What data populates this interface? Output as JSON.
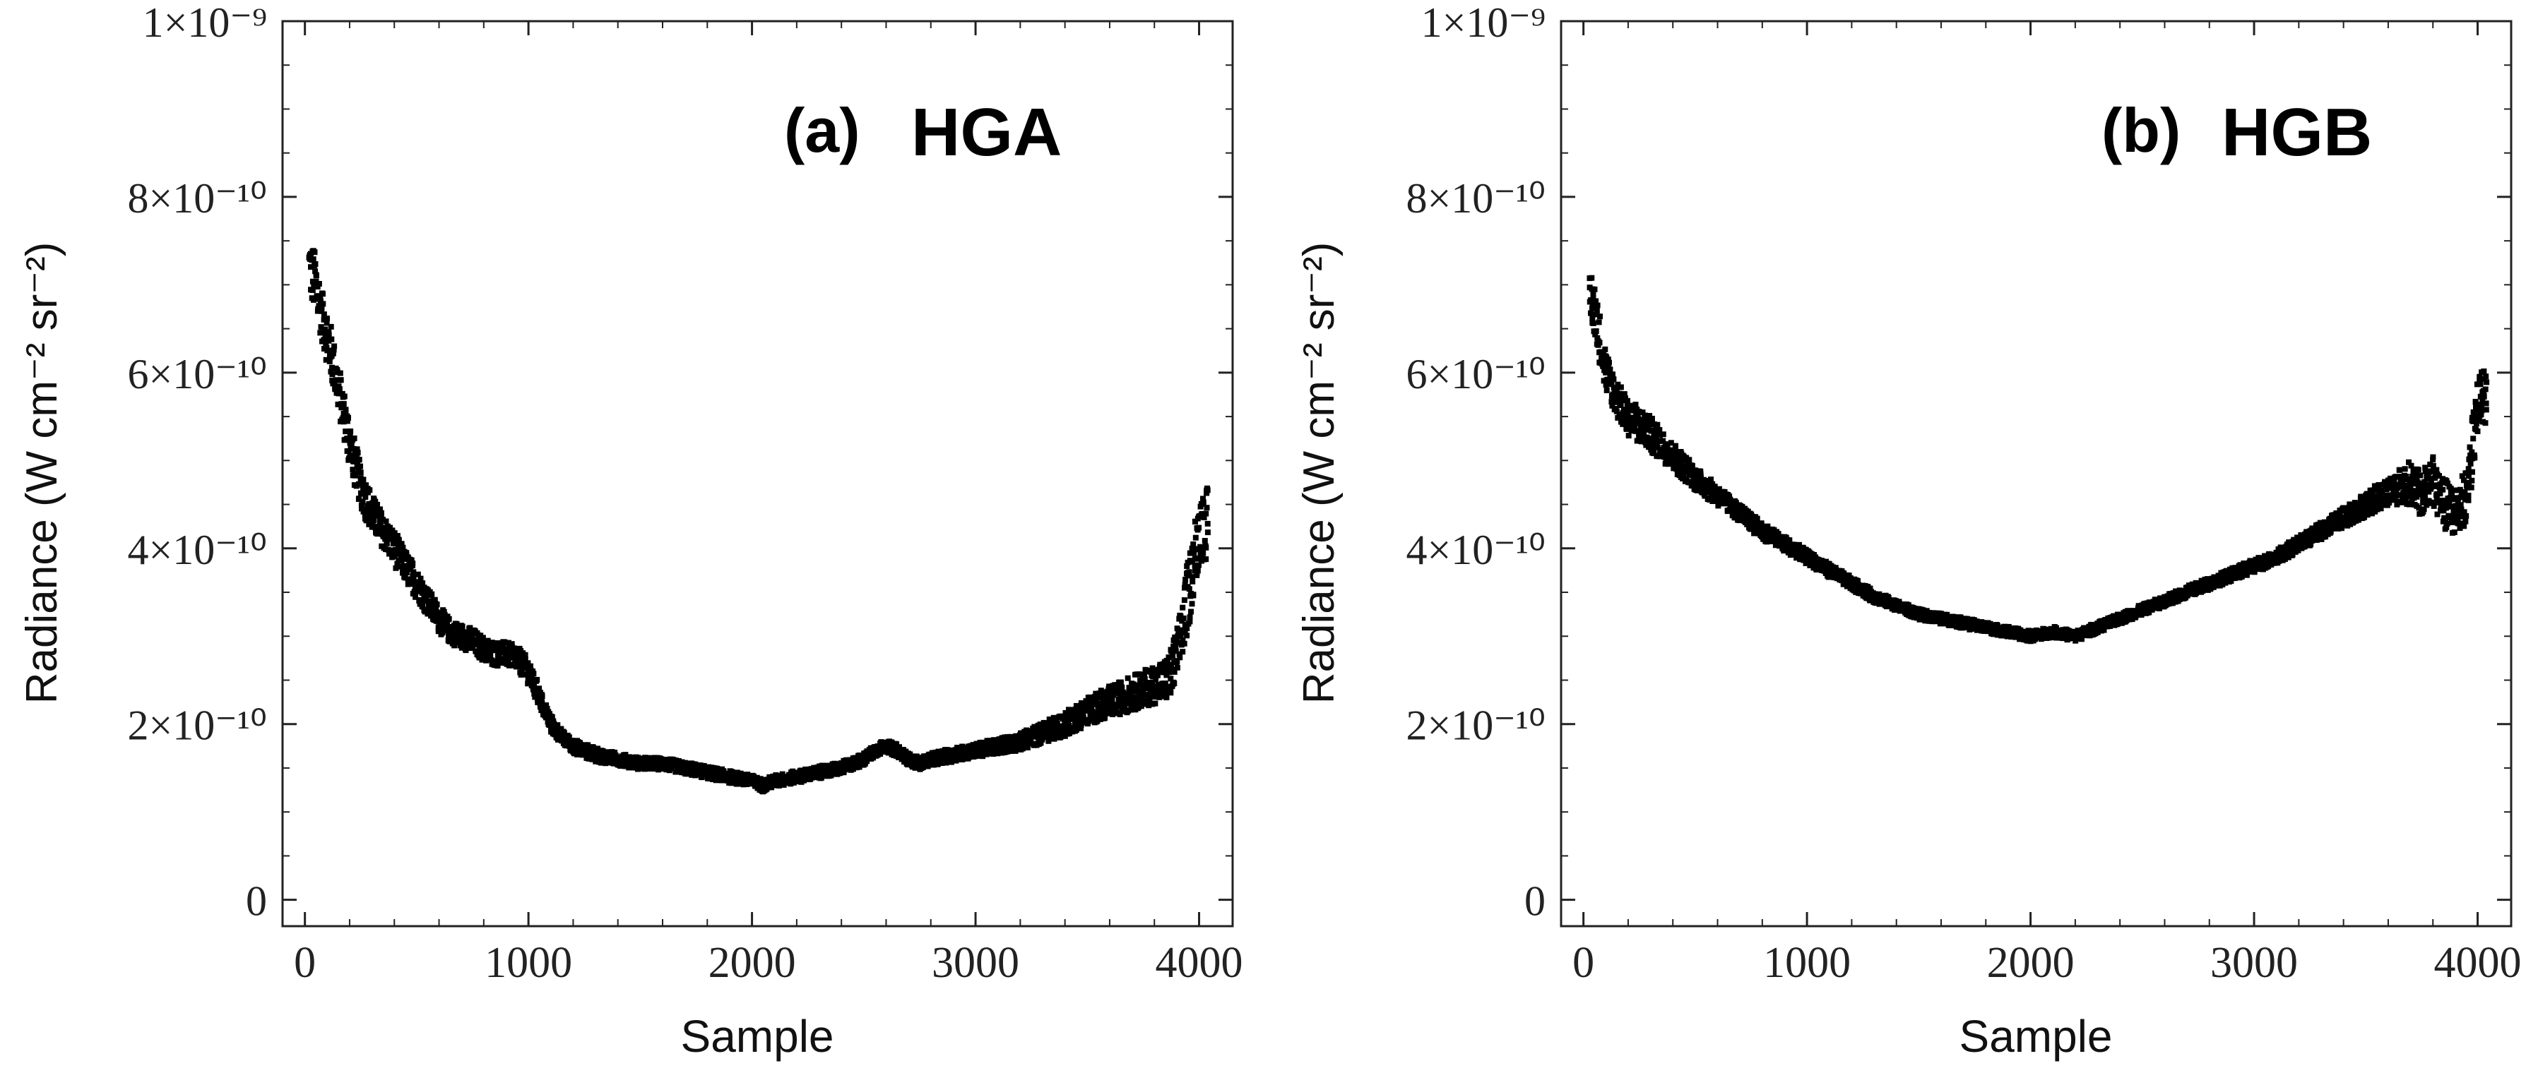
{
  "colors": {
    "marker": "#000000",
    "axis": "#222222",
    "background": "#ffffff"
  },
  "chart_data": [
    {
      "type": "scatter",
      "panel_label": "(a)",
      "title": "HGA",
      "xlabel": "Sample",
      "ylabel": "Radiance (W cm⁻² sr⁻²)",
      "xlim": [
        -100,
        4150
      ],
      "ylim": [
        -0.3,
        10
      ],
      "x_ticks": [
        0,
        1000,
        2000,
        3000,
        4000
      ],
      "x_tick_labels": [
        "0",
        "1000",
        "2000",
        "3000",
        "4000"
      ],
      "y_ticks": [
        0,
        2,
        4,
        6,
        8,
        10
      ],
      "y_tick_labels": [
        "0",
        "2×10⁻¹⁰",
        "4×10⁻¹⁰",
        "6×10⁻¹⁰",
        "8×10⁻¹⁰",
        "1×10⁻⁹"
      ],
      "y_unit": "1e-10 W cm^-2 sr^-2",
      "series": [
        {
          "name": "HGA radiance",
          "x": [
            20,
            50,
            80,
            120,
            160,
            200,
            250,
            300,
            350,
            400,
            450,
            500,
            550,
            600,
            650,
            700,
            750,
            800,
            850,
            900,
            950,
            1000,
            1050,
            1100,
            1150,
            1200,
            1300,
            1400,
            1500,
            1600,
            1700,
            1800,
            1900,
            2000,
            2050,
            2100,
            2200,
            2300,
            2400,
            2500,
            2550,
            2600,
            2650,
            2700,
            2750,
            2800,
            2900,
            3000,
            3100,
            3200,
            3300,
            3400,
            3500,
            3600,
            3700,
            3800,
            3850,
            3880,
            3920,
            3960,
            4000,
            4040
          ],
          "y": [
            7.2,
            7.0,
            6.6,
            6.2,
            5.7,
            5.2,
            4.7,
            4.4,
            4.2,
            4.0,
            3.8,
            3.6,
            3.4,
            3.2,
            3.05,
            3.0,
            2.95,
            2.85,
            2.8,
            2.8,
            2.75,
            2.6,
            2.3,
            2.0,
            1.85,
            1.75,
            1.65,
            1.6,
            1.55,
            1.55,
            1.5,
            1.45,
            1.4,
            1.35,
            1.3,
            1.35,
            1.4,
            1.45,
            1.5,
            1.6,
            1.7,
            1.75,
            1.7,
            1.6,
            1.55,
            1.6,
            1.65,
            1.7,
            1.75,
            1.8,
            1.9,
            2.0,
            2.15,
            2.25,
            2.35,
            2.45,
            2.5,
            2.6,
            3.0,
            3.6,
            4.2,
            4.3
          ],
          "spread": [
            0.35,
            0.35,
            0.3,
            0.3,
            0.28,
            0.28,
            0.25,
            0.22,
            0.2,
            0.2,
            0.18,
            0.18,
            0.16,
            0.15,
            0.14,
            0.14,
            0.14,
            0.14,
            0.14,
            0.14,
            0.14,
            0.14,
            0.12,
            0.1,
            0.08,
            0.08,
            0.08,
            0.07,
            0.07,
            0.07,
            0.07,
            0.07,
            0.07,
            0.07,
            0.07,
            0.07,
            0.07,
            0.07,
            0.07,
            0.07,
            0.07,
            0.07,
            0.07,
            0.07,
            0.07,
            0.07,
            0.08,
            0.08,
            0.09,
            0.1,
            0.12,
            0.14,
            0.16,
            0.18,
            0.2,
            0.22,
            0.25,
            0.3,
            0.35,
            0.4,
            0.4,
            0.4
          ]
        }
      ]
    },
    {
      "type": "scatter",
      "panel_label": "(b)",
      "title": "HGB",
      "xlabel": "Sample",
      "ylabel": "Radiance (W cm⁻² sr⁻²)",
      "xlim": [
        -100,
        4150
      ],
      "ylim": [
        -0.3,
        10
      ],
      "x_ticks": [
        0,
        1000,
        2000,
        3000,
        4000
      ],
      "x_tick_labels": [
        "0",
        "1000",
        "2000",
        "3000",
        "4000"
      ],
      "y_ticks": [
        0,
        2,
        4,
        6,
        8,
        10
      ],
      "y_tick_labels": [
        "0",
        "2×10⁻¹⁰",
        "4×10⁻¹⁰",
        "6×10⁻¹⁰",
        "8×10⁻¹⁰",
        "1×10⁻⁹"
      ],
      "y_unit": "1e-10 W cm^-2 sr^-2",
      "series": [
        {
          "name": "HGB radiance",
          "x": [
            30,
            60,
            100,
            150,
            200,
            300,
            400,
            500,
            600,
            700,
            800,
            900,
            1000,
            1100,
            1200,
            1300,
            1400,
            1500,
            1600,
            1700,
            1800,
            1900,
            2000,
            2100,
            2200,
            2300,
            2400,
            2500,
            2600,
            2700,
            2800,
            2900,
            3000,
            3100,
            3200,
            3300,
            3400,
            3500,
            3600,
            3650,
            3700,
            3750,
            3800,
            3850,
            3900,
            3950,
            4000,
            4040
          ],
          "y": [
            6.9,
            6.6,
            6.0,
            5.7,
            5.5,
            5.3,
            5.05,
            4.8,
            4.6,
            4.4,
            4.2,
            4.05,
            3.9,
            3.75,
            3.6,
            3.45,
            3.35,
            3.25,
            3.2,
            3.15,
            3.1,
            3.05,
            3.0,
            3.05,
            3.0,
            3.1,
            3.2,
            3.3,
            3.4,
            3.5,
            3.6,
            3.7,
            3.8,
            3.9,
            4.05,
            4.2,
            4.35,
            4.5,
            4.65,
            4.7,
            4.75,
            4.6,
            4.8,
            4.5,
            4.4,
            4.6,
            5.6,
            5.8
          ],
          "spread": [
            0.3,
            0.3,
            0.25,
            0.22,
            0.22,
            0.2,
            0.16,
            0.14,
            0.12,
            0.1,
            0.1,
            0.09,
            0.08,
            0.08,
            0.07,
            0.07,
            0.06,
            0.06,
            0.06,
            0.06,
            0.06,
            0.06,
            0.06,
            0.06,
            0.06,
            0.06,
            0.06,
            0.06,
            0.06,
            0.07,
            0.07,
            0.07,
            0.08,
            0.08,
            0.09,
            0.1,
            0.12,
            0.14,
            0.16,
            0.2,
            0.25,
            0.25,
            0.3,
            0.3,
            0.3,
            0.3,
            0.35,
            0.35
          ]
        }
      ]
    }
  ]
}
